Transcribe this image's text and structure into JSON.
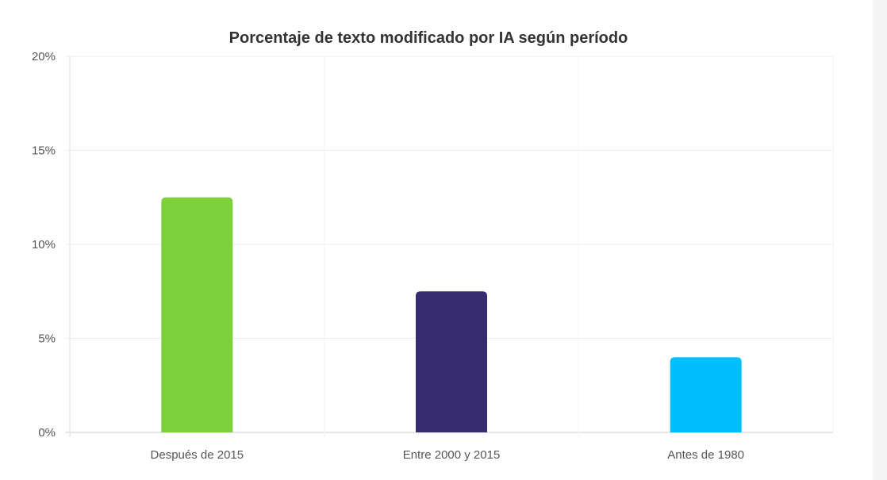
{
  "chart_data": {
    "type": "bar",
    "title": "Porcentaje de texto modificado por IA según período",
    "categories": [
      "Después de 2015",
      "Entre 2000 y 2015",
      "Antes de 1980"
    ],
    "values": [
      12.5,
      7.5,
      4
    ],
    "colors": [
      "#7bd03c",
      "#372c6e",
      "#00bfff"
    ],
    "xlabel": "",
    "ylabel": "",
    "ylim": [
      0,
      20
    ],
    "yticks": [
      "0%",
      "5%",
      "10%",
      "15%",
      "20%"
    ],
    "grid": true,
    "legend": "none"
  }
}
